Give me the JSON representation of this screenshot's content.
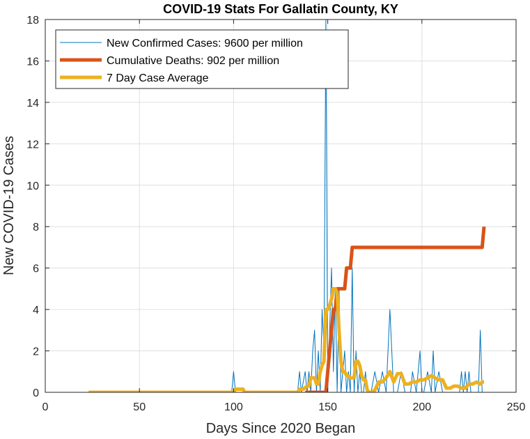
{
  "chart_data": {
    "type": "line",
    "title": "COVID-19 Stats For Gallatin County, KY",
    "xlabel": "Days Since 2020 Began",
    "ylabel": "New COVID-19 Cases",
    "xlim": [
      0,
      250
    ],
    "ylim": [
      0,
      18
    ],
    "xticks": [
      0,
      50,
      100,
      150,
      200,
      250
    ],
    "yticks": [
      0,
      2,
      4,
      6,
      8,
      10,
      12,
      14,
      16,
      18
    ],
    "grid": true,
    "legend_position": "top-left",
    "series": [
      {
        "name": "New Confirmed Cases: 9600 per million",
        "color": "#0072BD",
        "line_width": 1,
        "x": [
          23,
          99,
          100,
          101,
          134,
          135,
          136,
          138,
          139,
          140,
          141,
          142,
          143,
          144,
          145,
          146,
          147,
          148,
          149,
          150,
          151,
          152,
          153,
          154,
          155,
          156,
          157,
          158,
          159,
          160,
          161,
          162,
          163,
          164,
          165,
          166,
          167,
          168,
          169,
          170,
          171,
          172,
          173,
          175,
          177,
          179,
          181,
          183,
          185,
          187,
          189,
          191,
          193,
          194,
          195,
          197,
          199,
          200,
          201,
          203,
          205,
          206,
          207,
          209,
          211,
          213,
          215,
          220,
          221,
          222,
          223,
          224,
          225,
          226,
          228,
          230,
          231,
          232,
          233
        ],
        "y": [
          0,
          0,
          1,
          0,
          0,
          1,
          0,
          1,
          0,
          1,
          0,
          2,
          3,
          0,
          2,
          0,
          4,
          2,
          18,
          0,
          3,
          6,
          1,
          5,
          0,
          5,
          0,
          1,
          2,
          0,
          1,
          0,
          6,
          0,
          2,
          0,
          1,
          0,
          0,
          1,
          0,
          0,
          0,
          1,
          0,
          1,
          0,
          4,
          0,
          0,
          1,
          0,
          0,
          0,
          1,
          0,
          2,
          0,
          0,
          1,
          0,
          2,
          0,
          1,
          0,
          0,
          0,
          0,
          1,
          0,
          1,
          0,
          1,
          0,
          0,
          0,
          3,
          0,
          0
        ]
      },
      {
        "name": "Cumulative Deaths: 902 per million",
        "color": "#D95319",
        "line_width": 5,
        "x": [
          138,
          149,
          150,
          151,
          152,
          153,
          154,
          155,
          157,
          159,
          160,
          161,
          162,
          163,
          232,
          233
        ],
        "y": [
          0,
          0,
          1,
          2,
          3,
          4,
          4,
          5,
          5,
          5,
          6,
          6,
          6,
          7,
          7,
          8
        ]
      },
      {
        "name": "7 Day Case Average",
        "color": "#EDB120",
        "line_width": 5,
        "x": [
          23,
          100,
          101,
          105,
          106,
          134,
          135,
          137,
          139,
          140,
          141,
          142,
          143,
          144,
          145,
          146,
          147,
          148,
          149,
          150,
          151,
          152,
          153,
          154,
          155,
          156,
          157,
          158,
          159,
          160,
          161,
          162,
          163,
          164,
          165,
          166,
          167,
          168,
          169,
          170,
          171,
          172,
          173,
          175,
          177,
          179,
          181,
          183,
          185,
          187,
          189,
          191,
          193,
          195,
          197,
          199,
          201,
          203,
          205,
          207,
          209,
          211,
          213,
          215,
          217,
          219,
          221,
          223,
          225,
          227,
          229,
          231,
          232,
          233
        ],
        "y": [
          0,
          0,
          0.15,
          0.15,
          0,
          0,
          0.15,
          0.15,
          0.3,
          0.3,
          0.7,
          0.7,
          0.7,
          0.4,
          0.4,
          1,
          1.3,
          1.5,
          4,
          4,
          4.2,
          4.5,
          5,
          5,
          4.8,
          3,
          1.5,
          1,
          1,
          0.8,
          0.8,
          0.7,
          0.7,
          0.7,
          1.5,
          1.5,
          1.3,
          0.8,
          0.6,
          0.6,
          0.1,
          0,
          0,
          0.1,
          0.5,
          0.5,
          0.7,
          1,
          0.5,
          0.9,
          0.9,
          0.4,
          0.4,
          0.5,
          0.5,
          0.6,
          0.6,
          0.7,
          0.8,
          0.7,
          0.6,
          0.6,
          0.2,
          0.2,
          0.3,
          0.3,
          0.2,
          0.2,
          0.4,
          0.4,
          0.5,
          0.4,
          0.5,
          0.5
        ]
      }
    ]
  }
}
